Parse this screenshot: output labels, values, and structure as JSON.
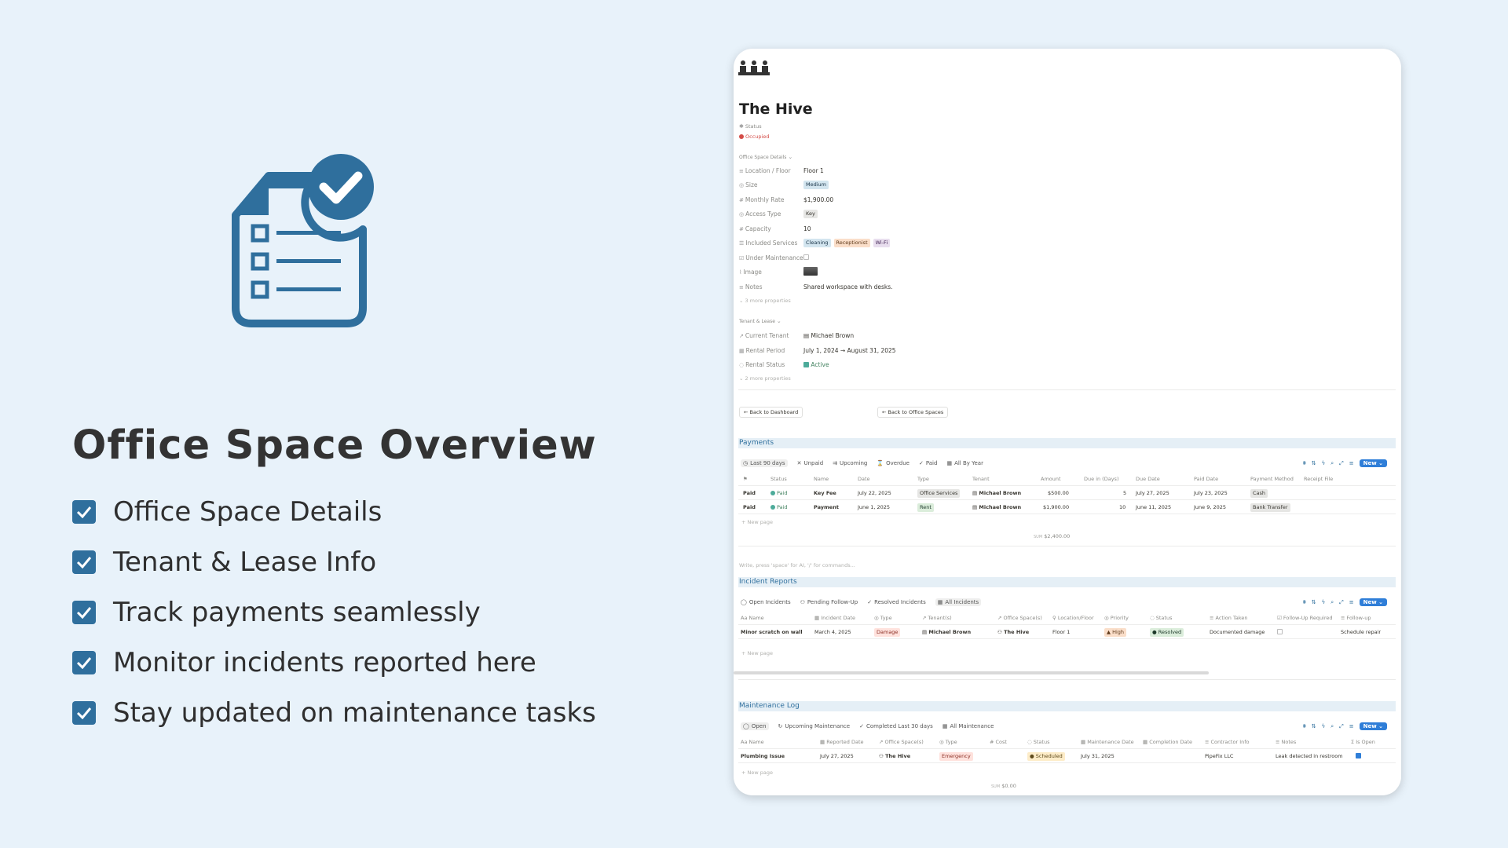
{
  "hero": {
    "title": "Office Space Overview",
    "features": [
      "Office Space Details",
      "Tenant & Lease Info",
      "Track payments seamlessly",
      "Monitor incidents reported here",
      "Stay updated on maintenance tasks"
    ],
    "accent_color": "#2f6f9d"
  },
  "page": {
    "title": "The Hive",
    "status_label": "Status",
    "status_value": "Occupied",
    "office_details_header": "Office Space Details",
    "properties": [
      {
        "label": "Location / Floor",
        "value": "Floor 1"
      },
      {
        "label": "Size",
        "value": "Medium"
      },
      {
        "label": "Monthly Rate",
        "value": "$1,900.00"
      },
      {
        "label": "Access Type",
        "value": "Key"
      },
      {
        "label": "Capacity",
        "value": "10"
      },
      {
        "label": "Included Services",
        "values": [
          "Cleaning",
          "Receptionist",
          "Wi-Fi"
        ]
      },
      {
        "label": "Under Maintenance",
        "value": ""
      },
      {
        "label": "Image",
        "value": ""
      },
      {
        "label": "Notes",
        "value": "Shared workspace with desks."
      }
    ],
    "more_props_1": "3 more properties",
    "tenant_header": "Tenant & Lease",
    "tenant_props": [
      {
        "label": "Current Tenant",
        "value": "Michael Brown"
      },
      {
        "label": "Rental Period",
        "value": "July 1, 2024 → August 31, 2025"
      },
      {
        "label": "Rental Status",
        "value": "Active"
      }
    ],
    "more_props_2": "2 more properties",
    "back_dashboard": "Back to Dashboard",
    "back_office": "Back to Office Spaces",
    "write_hint": "Write, press 'space' for AI, '/' for commands..."
  },
  "payments": {
    "title": "Payments",
    "tabs": [
      "Last 90 days",
      "Unpaid",
      "Upcoming",
      "Overdue",
      "Paid",
      "All By Year"
    ],
    "new_label": "New",
    "columns": [
      "Status",
      "Name",
      "Date",
      "Type",
      "Tenant",
      "Amount",
      "Due in (Days)",
      "Due Date",
      "Paid Date",
      "Payment Method",
      "Receipt File"
    ],
    "rows": [
      {
        "flag": "Paid",
        "status": "Paid",
        "name": "Key Fee",
        "date": "July 22, 2025",
        "type": "Office Services",
        "tenant": "Michael Brown",
        "amount": "$500.00",
        "due_days": "5",
        "due_date": "July 27, 2025",
        "paid_date": "July 23, 2025",
        "method": "Cash"
      },
      {
        "flag": "Paid",
        "status": "Paid",
        "name": "Payment",
        "date": "June 1, 2025",
        "type": "Rent",
        "tenant": "Michael Brown",
        "amount": "$1,900.00",
        "due_days": "10",
        "due_date": "June 11, 2025",
        "paid_date": "June 9, 2025",
        "method": "Bank Transfer"
      }
    ],
    "new_page": "New page",
    "sum_label": "SUM",
    "sum_value": "$2,400.00"
  },
  "incidents": {
    "title": "Incident Reports",
    "tabs": [
      "Open Incidents",
      "Pending Follow-Up",
      "Resolved Incidents",
      "All Incidents"
    ],
    "new_label": "New",
    "columns": [
      "Name",
      "Incident Date",
      "Type",
      "Tenant(s)",
      "Office Space(s)",
      "Location/Floor",
      "Priority",
      "Status",
      "Action Taken",
      "Follow-Up Required",
      "Follow-up"
    ],
    "rows": [
      {
        "name": "Minor scratch on wall",
        "date": "March 4, 2025",
        "type": "Damage",
        "tenant": "Michael Brown",
        "office": "The Hive",
        "floor": "Floor 1",
        "priority": "High",
        "status": "Resolved",
        "action": "Documented damage",
        "followup": "Schedule repair"
      }
    ],
    "new_page": "New page"
  },
  "maintenance": {
    "title": "Maintenance Log",
    "tabs": [
      "Open",
      "Upcoming Maintenance",
      "Completed Last 30 days",
      "All Maintenance"
    ],
    "new_label": "New",
    "columns": [
      "Name",
      "Reported Date",
      "Office Space(s)",
      "Type",
      "Cost",
      "Status",
      "Maintenance Date",
      "Completion Date",
      "Contractor Info",
      "Notes",
      "Is Open"
    ],
    "rows": [
      {
        "name": "Plumbing Issue",
        "reported": "July 27, 2025",
        "office": "The Hive",
        "type": "Emergency",
        "cost": "",
        "status": "Scheduled",
        "mdate": "July 31, 2025",
        "cdate": "",
        "contractor": "PipeFix LLC",
        "notes": "Leak detected in restroom"
      }
    ],
    "new_page": "New page",
    "sum_label": "SUM",
    "sum_value": "$0.00"
  }
}
